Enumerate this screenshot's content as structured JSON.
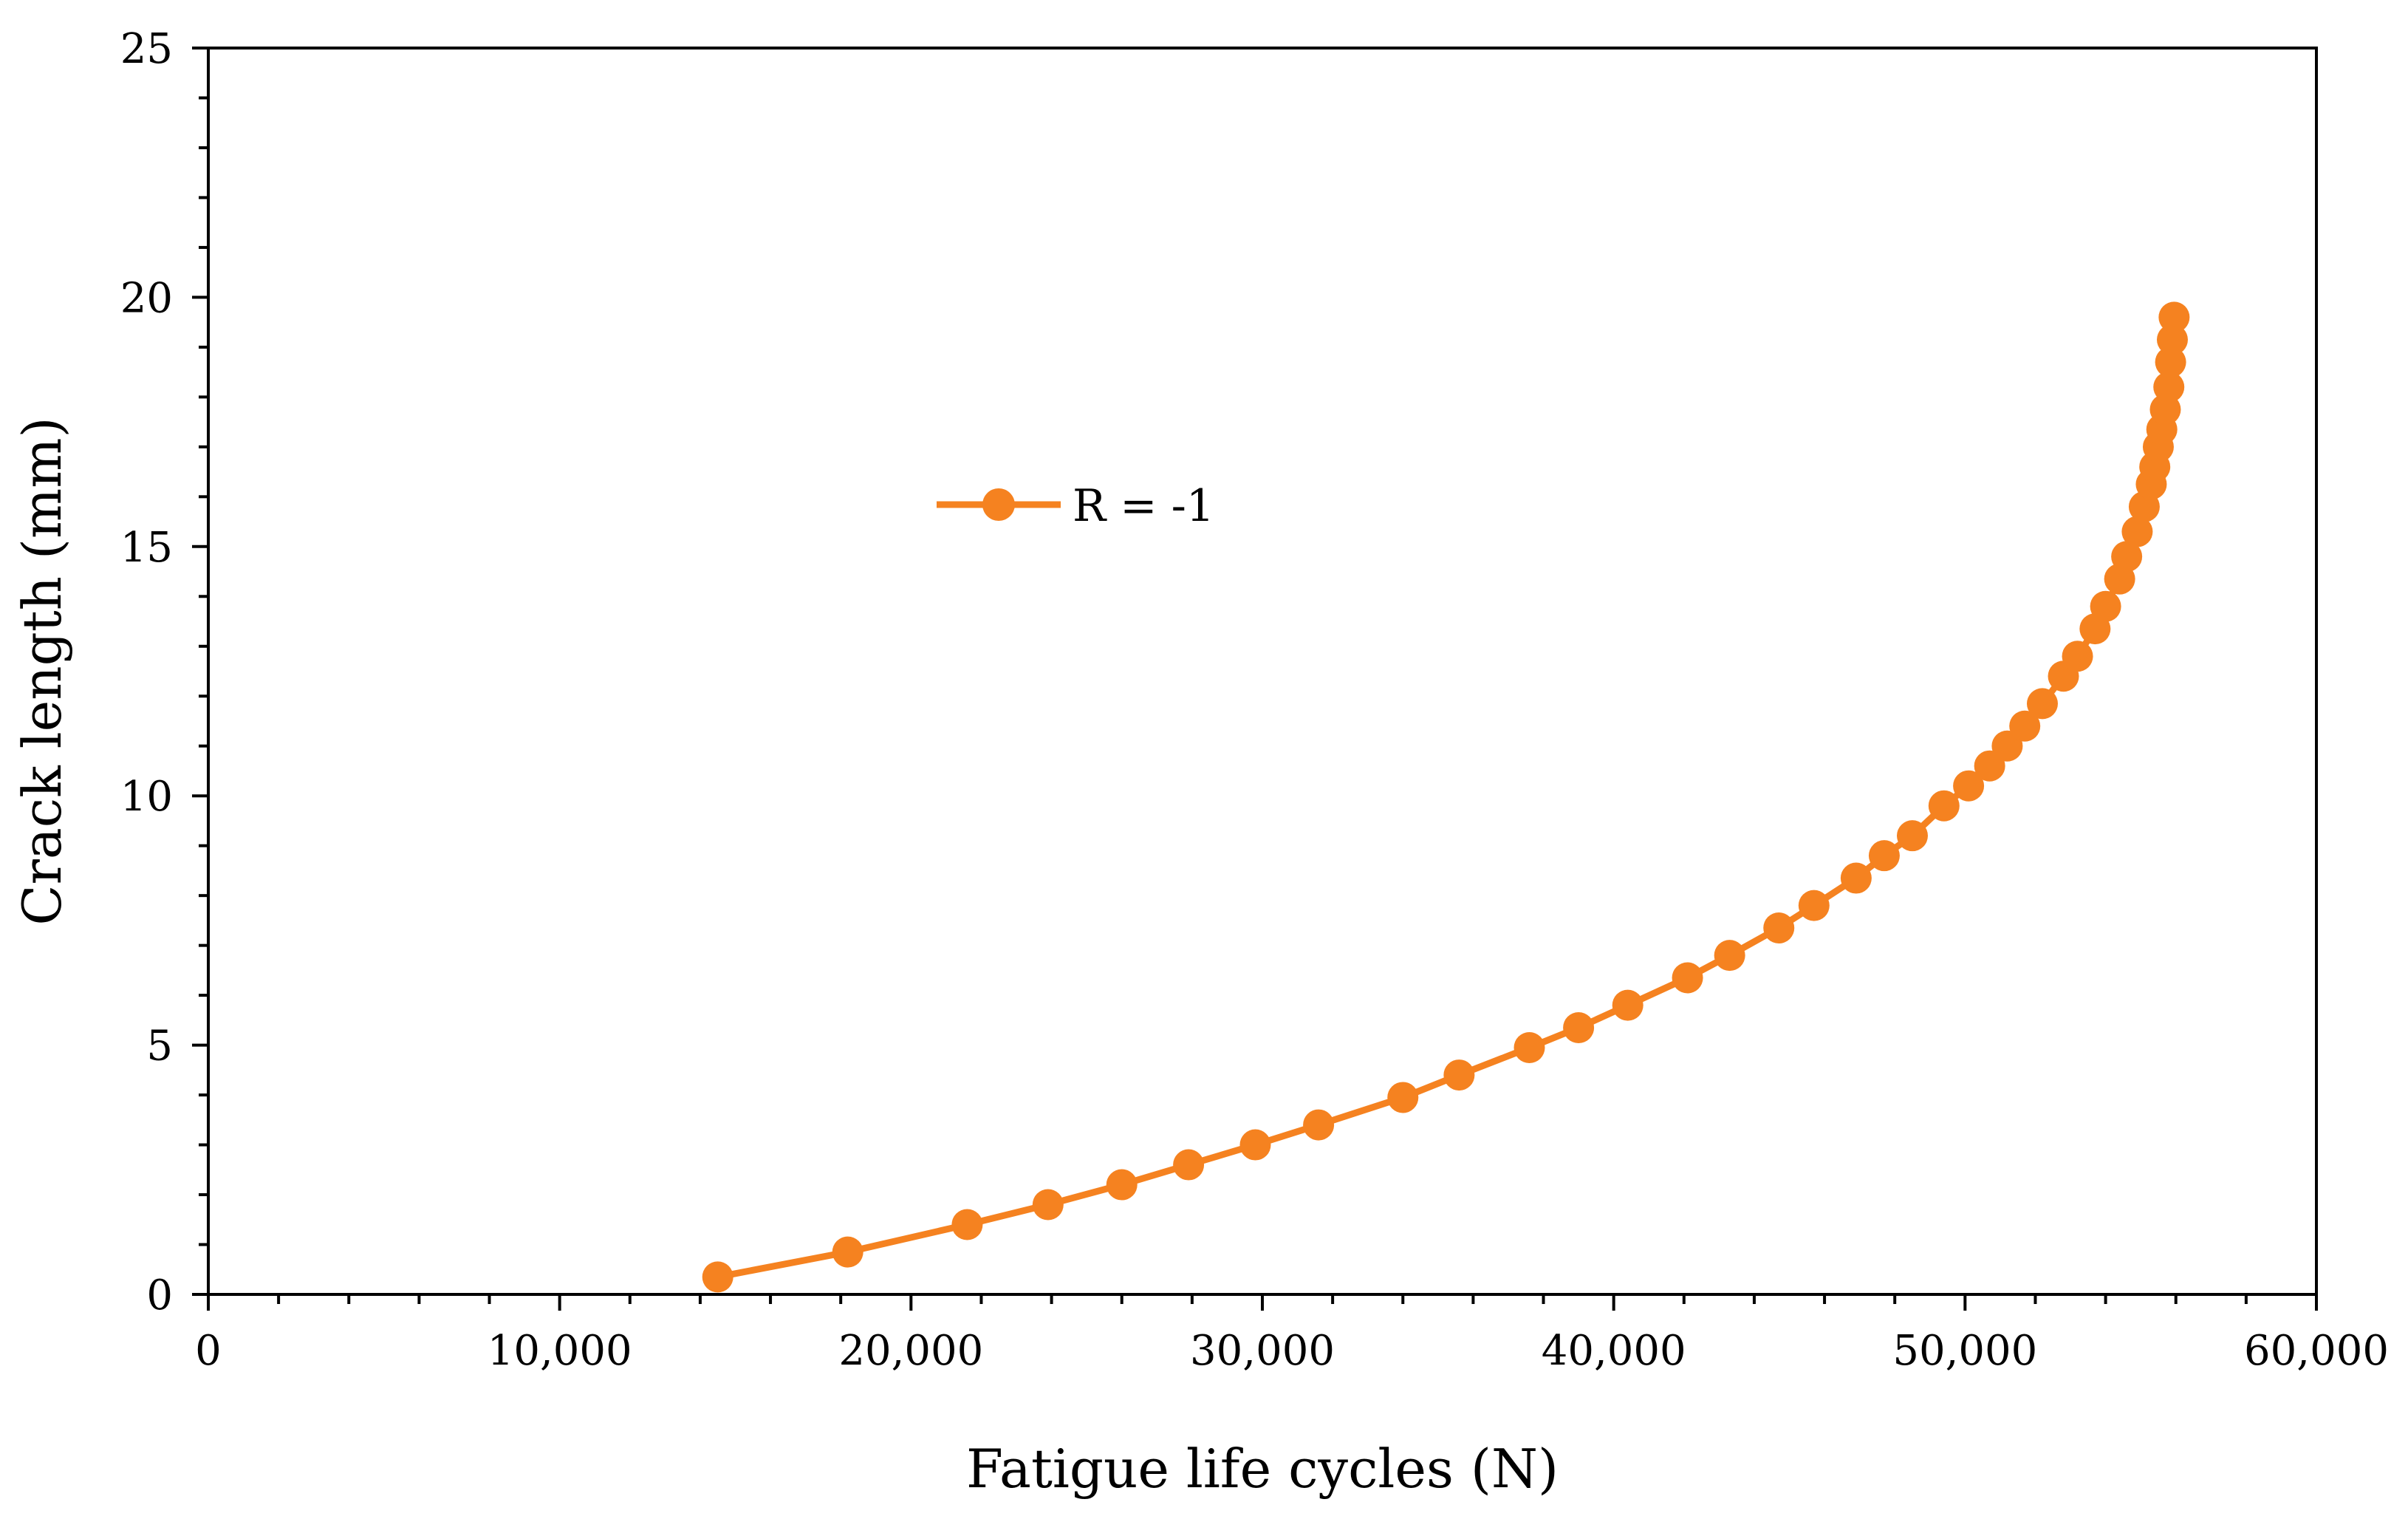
{
  "chart_data": {
    "type": "line",
    "xlabel": "Fatigue life cycles (N)",
    "ylabel": "Crack length (mm)",
    "xlim": [
      0,
      60000
    ],
    "ylim": [
      0,
      25
    ],
    "x_ticks": [
      0,
      10000,
      20000,
      30000,
      40000,
      50000,
      60000
    ],
    "x_tick_labels": [
      "0",
      "10,000",
      "20,000",
      "30,000",
      "40,000",
      "50,000",
      "60,000"
    ],
    "y_ticks": [
      0,
      5,
      10,
      15,
      20,
      25
    ],
    "y_tick_labels": [
      "0",
      "5",
      "10",
      "15",
      "20",
      "25"
    ],
    "grid": false,
    "legend_position": "upper-center",
    "series": [
      {
        "name": "R = -1",
        "color": "#F58220",
        "marker": "circle",
        "x": [
          14500,
          18200,
          21600,
          23900,
          26000,
          27900,
          29800,
          31600,
          34000,
          35600,
          37600,
          39000,
          40400,
          42100,
          43300,
          44700,
          45700,
          46900,
          47700,
          48500,
          49400,
          50100,
          50700,
          51200,
          51700,
          52200,
          52800,
          53200,
          53700,
          54000,
          54400,
          54600,
          54900,
          55100,
          55300,
          55400,
          55500,
          55600,
          55700,
          55800,
          55850,
          55900,
          55950
        ],
        "y": [
          0.35,
          0.85,
          1.4,
          1.8,
          2.2,
          2.6,
          3.0,
          3.4,
          3.95,
          4.4,
          4.95,
          5.35,
          5.8,
          6.35,
          6.8,
          7.35,
          7.8,
          8.35,
          8.8,
          9.2,
          9.8,
          10.2,
          10.6,
          11.0,
          11.4,
          11.85,
          12.4,
          12.8,
          13.35,
          13.8,
          14.35,
          14.8,
          15.3,
          15.8,
          16.25,
          16.6,
          17.0,
          17.35,
          17.75,
          18.2,
          18.7,
          19.15,
          19.6
        ]
      }
    ]
  }
}
